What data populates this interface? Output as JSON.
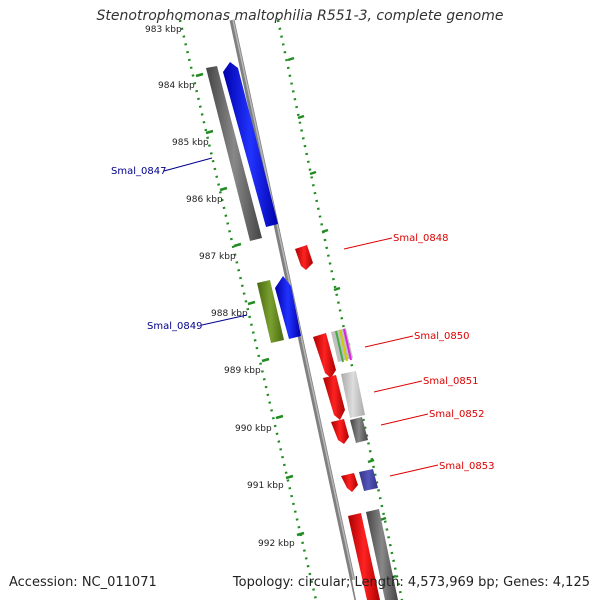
{
  "title": "Stenotrophomonas maltophilia R551-3, complete genome",
  "footer": {
    "accession": "Accession: NC_011071",
    "info": "Topology: circular; Length: 4,573,969 bp; Genes: 4,125"
  },
  "colors": {
    "forward_gene": "#0000ee",
    "reverse_gene": "#ee0000",
    "grey_feature": "#666666",
    "olive_feature": "#6b8e23",
    "ruler_dots": "#228b22",
    "label_forward": "#00008b",
    "label_reverse": "#dd0000"
  },
  "ticks": [
    "983 kbp",
    "984 kbp",
    "985 kbp",
    "986 kbp",
    "987 kbp",
    "988 kbp",
    "989 kbp",
    "990 kbp",
    "991 kbp",
    "992 kbp"
  ],
  "gene_labels": [
    {
      "name": "Smal_0847",
      "strand": "forward"
    },
    {
      "name": "Smal_0848",
      "strand": "reverse"
    },
    {
      "name": "Smal_0849",
      "strand": "forward"
    },
    {
      "name": "Smal_0850",
      "strand": "reverse"
    },
    {
      "name": "Smal_0851",
      "strand": "reverse"
    },
    {
      "name": "Smal_0852",
      "strand": "reverse"
    },
    {
      "name": "Smal_0853",
      "strand": "reverse"
    }
  ]
}
